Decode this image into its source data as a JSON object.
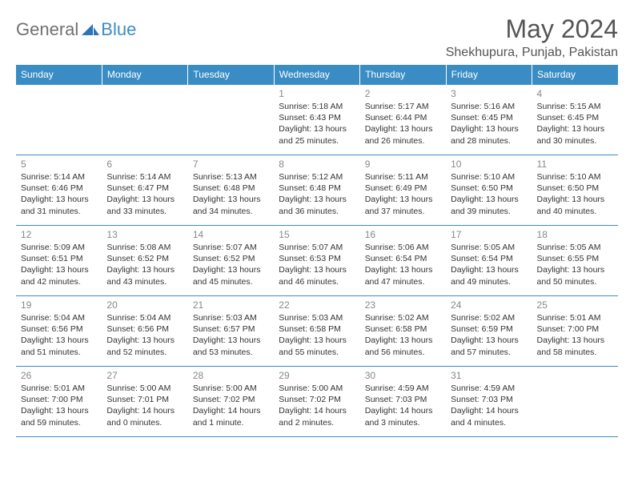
{
  "logo": {
    "part1": "General",
    "part2": "Blue"
  },
  "title": "May 2024",
  "location": "Shekhupura, Punjab, Pakistan",
  "colors": {
    "header_bg": "#3a8dc4",
    "header_text": "#ffffff",
    "border": "#3a8dc4",
    "daynum": "#888888",
    "body_text": "#333333",
    "logo_gray": "#707070",
    "logo_blue": "#3a8dc4",
    "title_gray": "#555555",
    "background": "#ffffff"
  },
  "dayHeaders": [
    "Sunday",
    "Monday",
    "Tuesday",
    "Wednesday",
    "Thursday",
    "Friday",
    "Saturday"
  ],
  "weeks": [
    [
      null,
      null,
      null,
      {
        "n": "1",
        "sr": "5:18 AM",
        "ss": "6:43 PM",
        "dl": "13 hours and 25 minutes."
      },
      {
        "n": "2",
        "sr": "5:17 AM",
        "ss": "6:44 PM",
        "dl": "13 hours and 26 minutes."
      },
      {
        "n": "3",
        "sr": "5:16 AM",
        "ss": "6:45 PM",
        "dl": "13 hours and 28 minutes."
      },
      {
        "n": "4",
        "sr": "5:15 AM",
        "ss": "6:45 PM",
        "dl": "13 hours and 30 minutes."
      }
    ],
    [
      {
        "n": "5",
        "sr": "5:14 AM",
        "ss": "6:46 PM",
        "dl": "13 hours and 31 minutes."
      },
      {
        "n": "6",
        "sr": "5:14 AM",
        "ss": "6:47 PM",
        "dl": "13 hours and 33 minutes."
      },
      {
        "n": "7",
        "sr": "5:13 AM",
        "ss": "6:48 PM",
        "dl": "13 hours and 34 minutes."
      },
      {
        "n": "8",
        "sr": "5:12 AM",
        "ss": "6:48 PM",
        "dl": "13 hours and 36 minutes."
      },
      {
        "n": "9",
        "sr": "5:11 AM",
        "ss": "6:49 PM",
        "dl": "13 hours and 37 minutes."
      },
      {
        "n": "10",
        "sr": "5:10 AM",
        "ss": "6:50 PM",
        "dl": "13 hours and 39 minutes."
      },
      {
        "n": "11",
        "sr": "5:10 AM",
        "ss": "6:50 PM",
        "dl": "13 hours and 40 minutes."
      }
    ],
    [
      {
        "n": "12",
        "sr": "5:09 AM",
        "ss": "6:51 PM",
        "dl": "13 hours and 42 minutes."
      },
      {
        "n": "13",
        "sr": "5:08 AM",
        "ss": "6:52 PM",
        "dl": "13 hours and 43 minutes."
      },
      {
        "n": "14",
        "sr": "5:07 AM",
        "ss": "6:52 PM",
        "dl": "13 hours and 45 minutes."
      },
      {
        "n": "15",
        "sr": "5:07 AM",
        "ss": "6:53 PM",
        "dl": "13 hours and 46 minutes."
      },
      {
        "n": "16",
        "sr": "5:06 AM",
        "ss": "6:54 PM",
        "dl": "13 hours and 47 minutes."
      },
      {
        "n": "17",
        "sr": "5:05 AM",
        "ss": "6:54 PM",
        "dl": "13 hours and 49 minutes."
      },
      {
        "n": "18",
        "sr": "5:05 AM",
        "ss": "6:55 PM",
        "dl": "13 hours and 50 minutes."
      }
    ],
    [
      {
        "n": "19",
        "sr": "5:04 AM",
        "ss": "6:56 PM",
        "dl": "13 hours and 51 minutes."
      },
      {
        "n": "20",
        "sr": "5:04 AM",
        "ss": "6:56 PM",
        "dl": "13 hours and 52 minutes."
      },
      {
        "n": "21",
        "sr": "5:03 AM",
        "ss": "6:57 PM",
        "dl": "13 hours and 53 minutes."
      },
      {
        "n": "22",
        "sr": "5:03 AM",
        "ss": "6:58 PM",
        "dl": "13 hours and 55 minutes."
      },
      {
        "n": "23",
        "sr": "5:02 AM",
        "ss": "6:58 PM",
        "dl": "13 hours and 56 minutes."
      },
      {
        "n": "24",
        "sr": "5:02 AM",
        "ss": "6:59 PM",
        "dl": "13 hours and 57 minutes."
      },
      {
        "n": "25",
        "sr": "5:01 AM",
        "ss": "7:00 PM",
        "dl": "13 hours and 58 minutes."
      }
    ],
    [
      {
        "n": "26",
        "sr": "5:01 AM",
        "ss": "7:00 PM",
        "dl": "13 hours and 59 minutes."
      },
      {
        "n": "27",
        "sr": "5:00 AM",
        "ss": "7:01 PM",
        "dl": "14 hours and 0 minutes."
      },
      {
        "n": "28",
        "sr": "5:00 AM",
        "ss": "7:02 PM",
        "dl": "14 hours and 1 minute."
      },
      {
        "n": "29",
        "sr": "5:00 AM",
        "ss": "7:02 PM",
        "dl": "14 hours and 2 minutes."
      },
      {
        "n": "30",
        "sr": "4:59 AM",
        "ss": "7:03 PM",
        "dl": "14 hours and 3 minutes."
      },
      {
        "n": "31",
        "sr": "4:59 AM",
        "ss": "7:03 PM",
        "dl": "14 hours and 4 minutes."
      },
      null
    ]
  ],
  "labels": {
    "sunrise": "Sunrise:",
    "sunset": "Sunset:",
    "daylight": "Daylight:"
  }
}
